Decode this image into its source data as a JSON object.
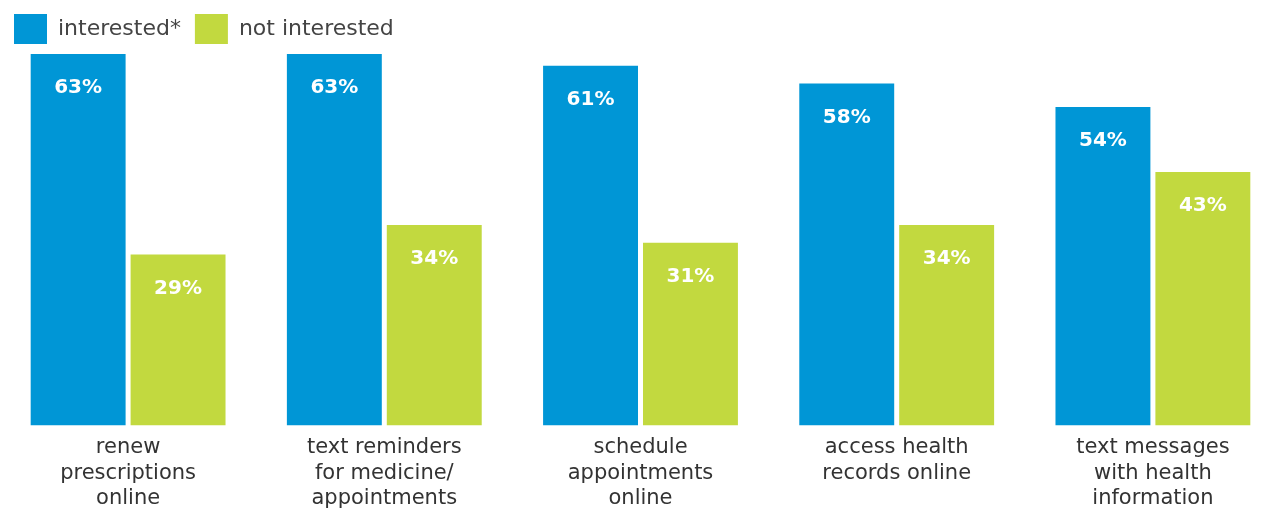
{
  "chart_data": {
    "type": "bar",
    "categories": [
      "renew prescriptions online",
      "text reminders for medicine/ appointments",
      "schedule appointments online",
      "access health records online",
      "text messages with health information"
    ],
    "series": [
      {
        "name": "interested*",
        "color": "#0096d6",
        "values": [
          63,
          63,
          61,
          58,
          54
        ],
        "value_labels": [
          "63%",
          "63%",
          "61%",
          "58%",
          "54%"
        ]
      },
      {
        "name": "not interested",
        "color": "#c2d93f",
        "values": [
          29,
          34,
          31,
          34,
          43
        ],
        "value_labels": [
          "29%",
          "34%",
          "31%",
          "34%",
          "43%"
        ]
      }
    ],
    "legend": "top left",
    "grid": false
  }
}
